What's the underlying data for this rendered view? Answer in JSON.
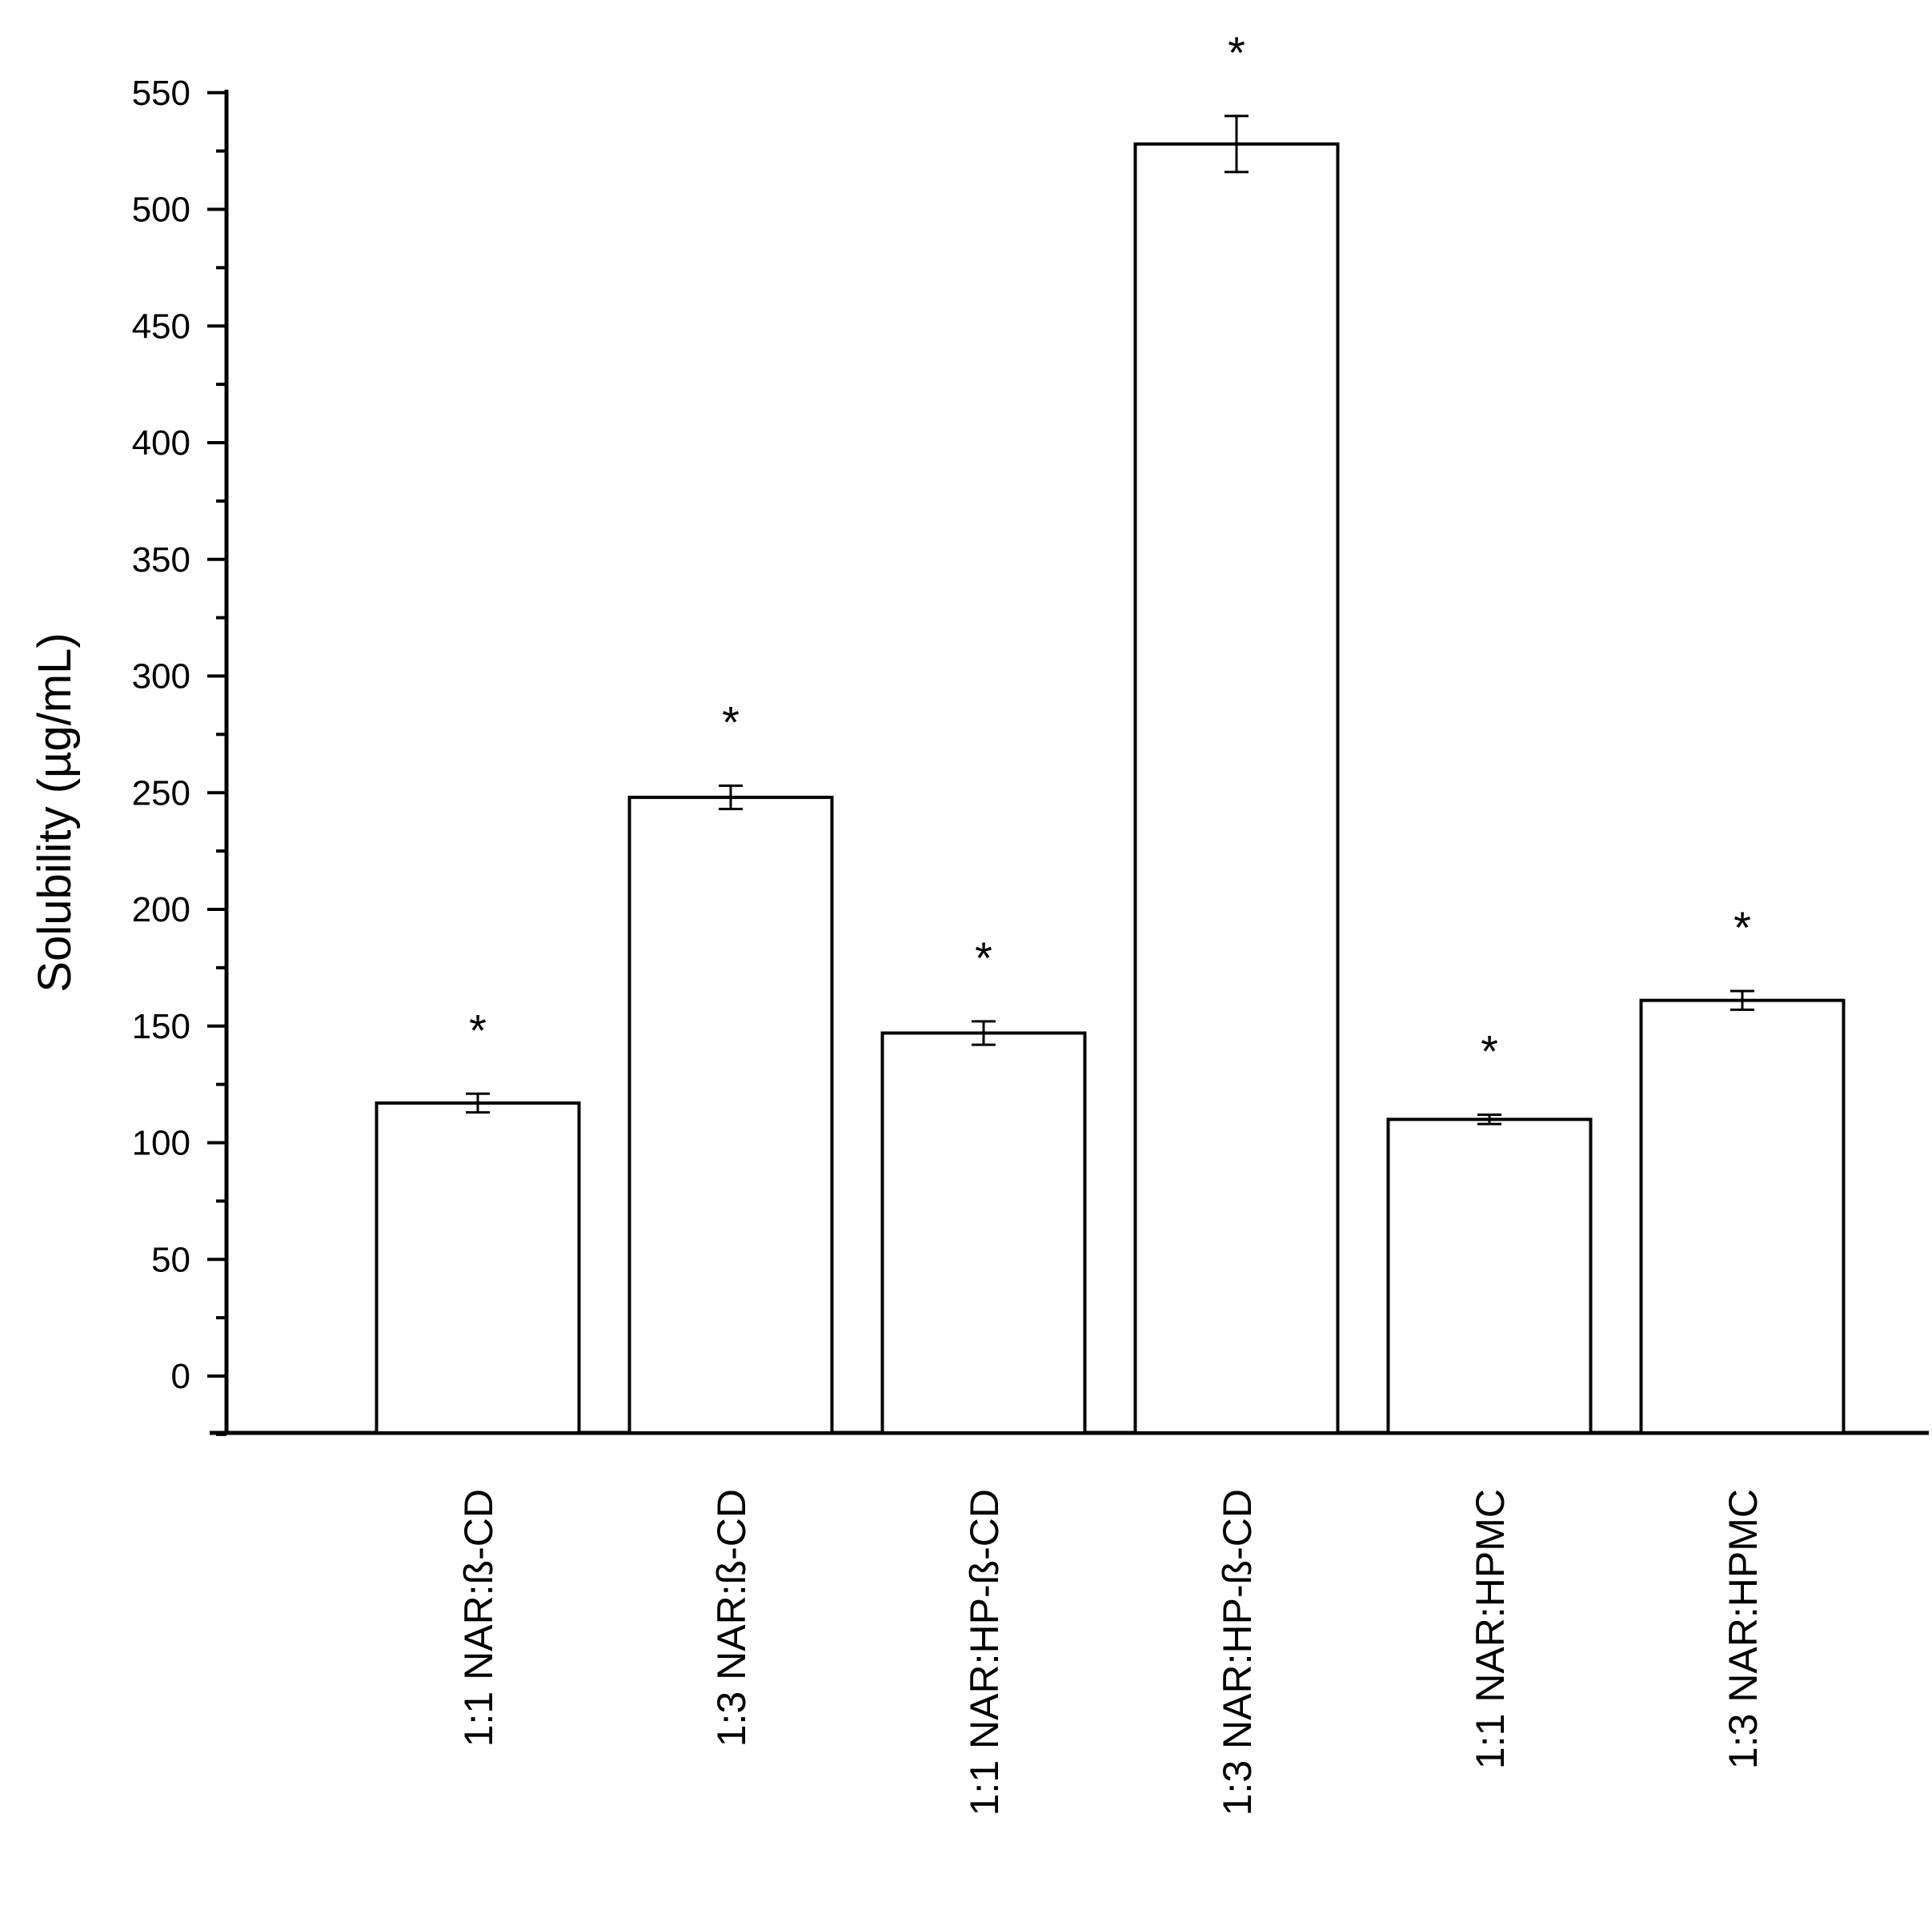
{
  "chart_data": {
    "type": "bar",
    "title": "",
    "xlabel": "",
    "ylabel": "Solubility (µg/mL)",
    "ylim": [
      -25,
      575
    ],
    "yticks": [
      0,
      50,
      100,
      150,
      200,
      250,
      300,
      350,
      400,
      450,
      500,
      550
    ],
    "categories": [
      "1:1 NAR:ß-CD",
      "1:3 NAR:ß-CD",
      "1:1 NAR:HP-ß-CD",
      "1:3 NAR:HP-ß-CD",
      "1:1 NAR:HPMC",
      "1:3 NAR:HPMC"
    ],
    "values": [
      117,
      248,
      147,
      528,
      110,
      161
    ],
    "errors": [
      4,
      5,
      5,
      12,
      2,
      4
    ],
    "significance": [
      "*",
      "*",
      "*",
      "*",
      "*",
      "*"
    ],
    "grid": false,
    "legend": "none",
    "bar_fill": "#ffffff",
    "line_color": "#000000"
  }
}
